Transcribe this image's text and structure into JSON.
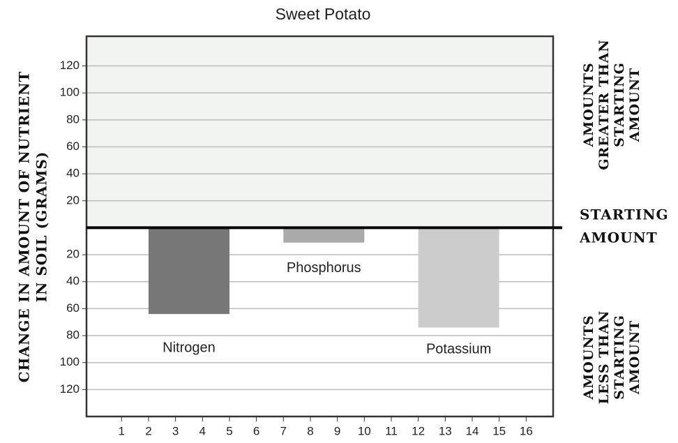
{
  "chart_data": {
    "type": "bar",
    "title": "Sweet Potato",
    "y_label": [
      "CHANGE IN AMOUNT OF NUTRIENT",
      "IN SOIL (GRAMS)"
    ],
    "annotations": {
      "above": [
        "AMOUNTS",
        "GREATER THAN",
        "STARTING",
        "AMOUNT"
      ],
      "zero": [
        "STARTING",
        "AMOUNT"
      ],
      "below": [
        "AMOUNTS",
        "LESS THAN",
        "STARTING",
        "AMOUNT"
      ]
    },
    "bars": [
      {
        "label": "Nitrogen",
        "x": [
          2,
          5
        ],
        "value": -64,
        "color": "#777777"
      },
      {
        "label": "Phosphorus",
        "x": [
          7,
          10
        ],
        "value": -11,
        "color": "#aaaaaa"
      },
      {
        "label": "Potassium",
        "x": [
          12,
          15
        ],
        "value": -74,
        "color": "#cccccc"
      }
    ],
    "xlim": [
      -0.3,
      17
    ],
    "xticks": [
      1,
      2,
      3,
      4,
      5,
      6,
      7,
      8,
      9,
      10,
      11,
      12,
      13,
      14,
      15,
      16
    ],
    "ylim": [
      -140,
      142
    ],
    "yticks": [
      {
        "value": -120,
        "label": "120"
      },
      {
        "value": -100,
        "label": "100"
      },
      {
        "value": -80,
        "label": "80"
      },
      {
        "value": -60,
        "label": "60"
      },
      {
        "value": -40,
        "label": "40"
      },
      {
        "value": -20,
        "label": "20"
      },
      20,
      40,
      60,
      80,
      100,
      120
    ],
    "grid": true,
    "upper_fill": "#f1f4f1"
  }
}
